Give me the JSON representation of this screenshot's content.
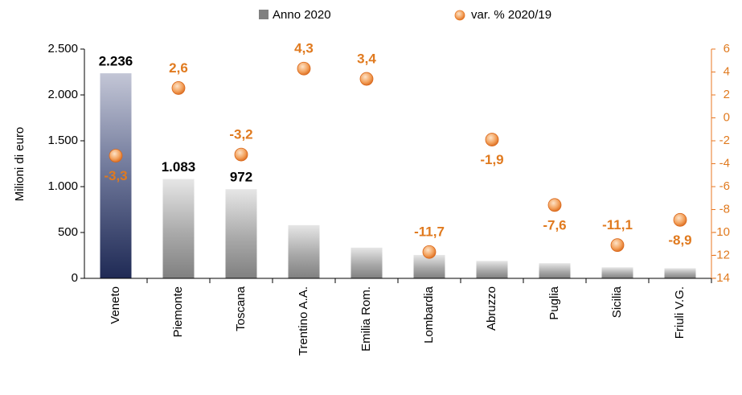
{
  "chart_data": {
    "type": "bar",
    "categories": [
      "Veneto",
      "Piemonte",
      "Toscana",
      "Trentino A.A.",
      "Emilia Rom.",
      "Lombardia",
      "Abruzzo",
      "Puglia",
      "Sicilia",
      "Friuli V.G."
    ],
    "ylabel": "Milioni di euro",
    "ylim": [
      0,
      2500
    ],
    "yticks": [
      0,
      500,
      {
        "value": 1000,
        "label": "1.000"
      },
      {
        "value": 1500,
        "label": "1.500"
      },
      {
        "value": 2000,
        "label": "2.000"
      },
      {
        "value": 2500,
        "label": "2.500"
      }
    ],
    "y2lim": [
      -14,
      6
    ],
    "y2ticks": [
      -14,
      -12,
      -10,
      -8,
      -6,
      -4,
      -2,
      0,
      2,
      4,
      6
    ],
    "series": [
      {
        "name": "Anno 2020",
        "type": "bar",
        "color": "#808080",
        "highlight_color": "#1f2a55",
        "values": [
          2236,
          1083,
          972,
          580,
          335,
          255,
          190,
          165,
          120,
          110
        ],
        "value_labels": [
          "2.236",
          "1.083",
          "972",
          null,
          null,
          null,
          null,
          null,
          null,
          null
        ]
      },
      {
        "name": "var. % 2020/19",
        "type": "scatter",
        "axis": "y2",
        "color": "#e87722",
        "values": [
          -3.3,
          2.6,
          -3.2,
          4.3,
          3.4,
          -11.7,
          -1.9,
          -7.6,
          -11.1,
          -8.9
        ],
        "value_labels": [
          "-3,3",
          "2,6",
          "-3,2",
          "4,3",
          "3,4",
          "-11,7",
          "-1,9",
          "-7,6",
          "-11,1",
          "-8,9"
        ]
      }
    ]
  }
}
